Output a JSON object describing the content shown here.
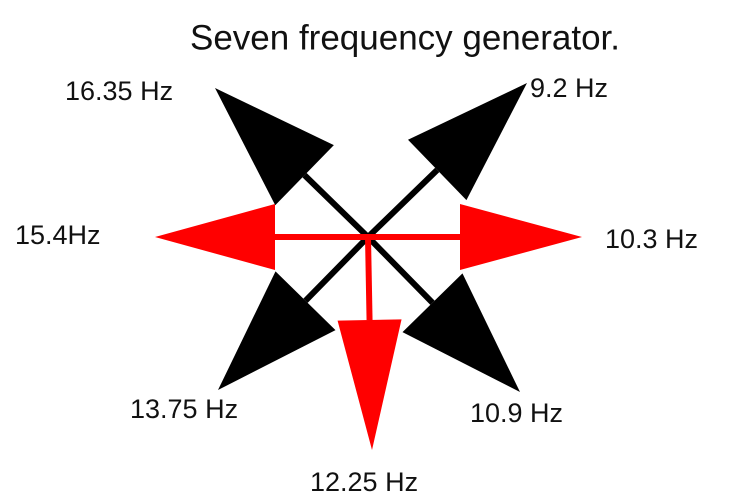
{
  "title": "Seven frequency generator.",
  "labels": {
    "upper_left": "16.35 Hz",
    "upper_right": "9.2 Hz",
    "left": "15.4Hz",
    "right": "10.3 Hz",
    "lower_left": "13.75 Hz",
    "lower_right": "10.9 Hz",
    "bottom": "12.25 Hz"
  }
}
